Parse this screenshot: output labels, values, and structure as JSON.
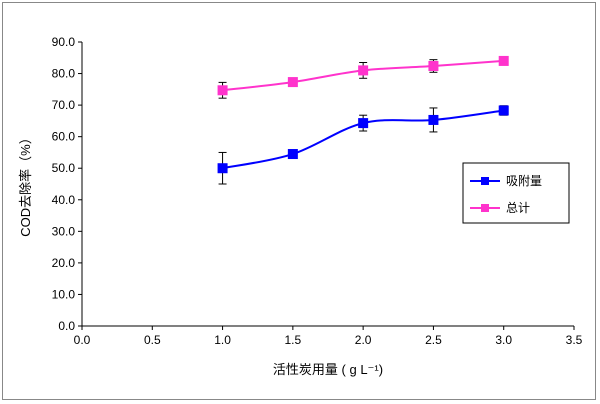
{
  "chart_data": {
    "type": "line",
    "xlabel": "活性炭用量 ( g L⁻¹)",
    "ylabel": "COD去除率（%）",
    "xlim": [
      0,
      3.5
    ],
    "ylim": [
      0,
      90
    ],
    "x_ticks": [
      "0.0",
      "0.5",
      "1.0",
      "1.5",
      "2.0",
      "2.5",
      "3.0",
      "3.5"
    ],
    "y_ticks": [
      "0.0",
      "10.0",
      "20.0",
      "30.0",
      "40.0",
      "50.0",
      "60.0",
      "70.0",
      "80.0",
      "90.0"
    ],
    "grid": false,
    "legend_placement": "right",
    "x": [
      1.0,
      1.5,
      2.0,
      2.5,
      3.0
    ],
    "series": [
      {
        "name": "吸附量",
        "color": "#0000ff",
        "marker": "square",
        "values": [
          50.0,
          54.5,
          64.3,
          65.3,
          68.3
        ],
        "errors": [
          5.0,
          0.5,
          2.5,
          3.8,
          1.5
        ]
      },
      {
        "name": "总计",
        "color": "#ff33cc",
        "marker": "square",
        "values": [
          74.7,
          77.3,
          81.0,
          82.4,
          84.0
        ],
        "errors": [
          2.5,
          0.3,
          2.5,
          2.0,
          0.5
        ]
      }
    ]
  }
}
